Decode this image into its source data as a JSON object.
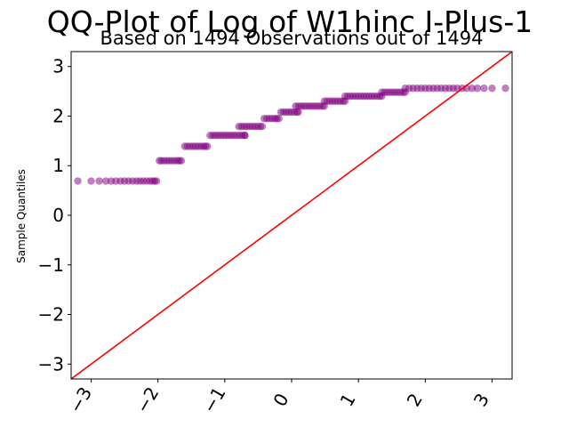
{
  "chart_data": {
    "type": "scatter",
    "title": "QQ-Plot of Log of W1hinc I-Plus-1",
    "subtitle": "Based on 1494 Observations out of 1494",
    "xlabel": "",
    "ylabel": "Sample Quantiles",
    "xlim": [
      -3.3,
      3.3
    ],
    "ylim": [
      -3.3,
      3.3
    ],
    "x_ticks": [
      -3,
      -2,
      -1,
      0,
      1,
      2,
      3
    ],
    "y_ticks": [
      -3,
      -2,
      -1,
      0,
      1,
      2,
      3
    ],
    "x_tick_labels": [
      "−3",
      "−2",
      "−1",
      "0",
      "1",
      "2",
      "3"
    ],
    "y_tick_labels": [
      "−3",
      "−2",
      "−1",
      "0",
      "1",
      "2",
      "3"
    ],
    "grid": false,
    "marker_color": "#800080",
    "reference_line_color": "#ff0000",
    "reference_line": {
      "slope": 1,
      "intercept": 0
    },
    "steps": [
      {
        "y": 0.69,
        "x": [
          -3.2,
          -3.0,
          -2.88,
          -2.78,
          -2.7,
          -2.63,
          -2.56,
          -2.5,
          -2.44,
          -2.38,
          -2.32,
          -2.27,
          -2.22,
          -2.17,
          -2.12,
          -2.08,
          -2.05,
          -2.02
        ]
      },
      {
        "y": 1.1,
        "x": [
          -1.98,
          -1.95,
          -1.91,
          -1.87,
          -1.83,
          -1.79,
          -1.75,
          -1.71,
          -1.68,
          -1.65
        ]
      },
      {
        "y": 1.39,
        "x": [
          -1.6,
          -1.56,
          -1.52,
          -1.48,
          -1.44,
          -1.4,
          -1.36,
          -1.32,
          -1.29,
          -1.26
        ]
      },
      {
        "y": 1.61,
        "x": [
          -1.22,
          -1.18,
          -1.14,
          -1.1,
          -1.06,
          -1.02,
          -0.98,
          -0.94,
          -0.9,
          -0.86,
          -0.82,
          -0.78,
          -0.74,
          -0.7,
          -0.7
        ]
      },
      {
        "y": 1.79,
        "x": [
          -0.79,
          -0.75,
          -0.71,
          -0.67,
          -0.63,
          -0.59,
          -0.55,
          -0.51,
          -0.47,
          -0.44
        ]
      },
      {
        "y": 1.95,
        "x": [
          -0.41,
          -0.37,
          -0.33,
          -0.29,
          -0.25,
          -0.22,
          -0.19
        ]
      },
      {
        "y": 2.08,
        "x": [
          -0.16,
          -0.12,
          -0.08,
          -0.04,
          0.0,
          0.04,
          0.08,
          0.1
        ]
      },
      {
        "y": 2.2,
        "x": [
          0.06,
          0.1,
          0.14,
          0.18,
          0.22,
          0.26,
          0.3,
          0.34,
          0.38,
          0.42,
          0.46,
          0.49
        ]
      },
      {
        "y": 2.3,
        "x": [
          0.49,
          0.53,
          0.57,
          0.61,
          0.65,
          0.69,
          0.73,
          0.77,
          0.8
        ]
      },
      {
        "y": 2.4,
        "x": [
          0.8,
          0.84,
          0.88,
          0.92,
          0.96,
          1.0,
          1.04,
          1.08,
          1.12,
          1.16,
          1.2,
          1.24,
          1.28,
          1.32,
          1.35
        ]
      },
      {
        "y": 2.48,
        "x": [
          1.35,
          1.39,
          1.43,
          1.47,
          1.51,
          1.55,
          1.59,
          1.63,
          1.67,
          1.7
        ]
      },
      {
        "y": 2.56,
        "x": [
          1.7,
          1.76,
          1.82,
          1.88,
          1.94,
          2.0,
          2.06,
          2.12,
          2.18,
          2.24,
          2.3,
          2.36,
          2.42,
          2.48,
          2.55,
          2.62,
          2.7,
          2.78,
          2.88,
          3.0,
          3.2
        ]
      }
    ]
  }
}
